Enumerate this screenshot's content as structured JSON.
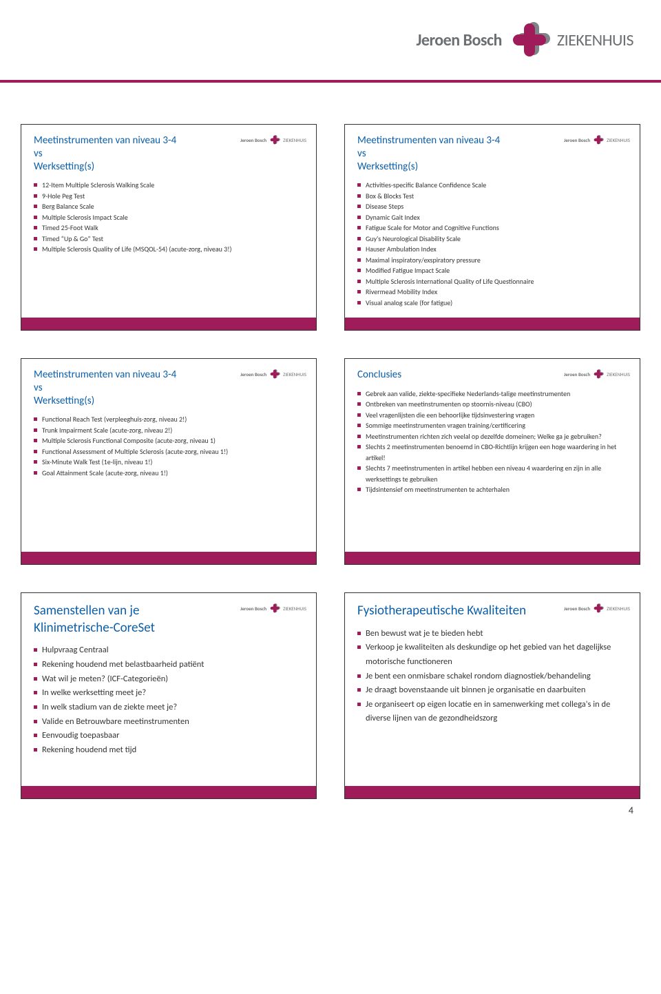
{
  "colors": {
    "accent": "#a01b59",
    "gray": "#6b6f72",
    "titleColor": "#0b5ea8"
  },
  "header": {
    "brand_bold": "Jeroen Bosch",
    "brand_light": "ZIEKENHUIS"
  },
  "pageNumber": "4",
  "slides": [
    {
      "title": "Meetinstrumenten van niveau 3-4\nvs\nWerksetting(s)",
      "titleSize": "normal",
      "itemSize": "normal",
      "items": [
        "12-Item Multiple Sclerosis Walking Scale",
        "9-Hole Peg Test",
        "Berg Balance Scale",
        "Multiple  Sclerosis Impact Scale",
        "Timed 25-Foot Walk",
        "Timed “Up & Go” Test",
        "Multiple Sclerosis Quality of Life (MSQOL-54) (acute-zorg, niveau 3!)"
      ]
    },
    {
      "title": "Meetinstrumenten van niveau 3-4\nvs\nWerksetting(s)",
      "titleSize": "normal",
      "itemSize": "normal",
      "items": [
        "Activities-specific Balance Confidence Scale",
        "Box & Blocks Test",
        "Disease Steps",
        "Dynamic Gait Index",
        "Fatigue Scale for Motor and Cognitive Functions",
        "Guy's Neurological Disability Scale",
        "Hauser Ambulation Index",
        "Maximal inspiratory/exspiratory pressure",
        "Modified Fatigue Impact Scale",
        "Multiple Sclerosis International Quality of Life Questionnaire",
        "Rivermead Mobility Index",
        "Visual analog scale (for fatigue)"
      ]
    },
    {
      "title": "Meetinstrumenten van niveau 3-4\nvs\nWerksetting(s)",
      "titleSize": "normal",
      "itemSize": "normal",
      "items": [
        "Functional Reach Test (verpleeghuis-zorg, niveau 2!)",
        "Trunk Impairment Scale (acute-zorg, niveau 2!)",
        "Multiple Sclerosis Functional Composite (acute-zorg, niveau 1)",
        "Functional Assessment of Multiple Sclerosis (acute-zorg, niveau 1!)",
        "Six-Minute Walk Test (1e-lijn, niveau 1!)",
        "Goal Attainment Scale (acute-zorg, niveau 1!)"
      ]
    },
    {
      "title": "Conclusies",
      "titleSize": "normal",
      "itemSize": "normal",
      "items": [
        "Gebrek aan valide, ziekte-specifieke Nederlands-talige meetinstrumenten",
        "Ontbreken van meetinstrumenten op stoornis-niveau (CBO)",
        "Veel vragenlijsten die een behoorlijke tijdsinvestering vragen",
        "Sommige meetinstrumenten vragen training/certificering",
        "Meetinstrumenten richten zich veelal op dezelfde domeinen; Welke ga je gebruiken?",
        "Slechts 2 meetinstrumenten benoemd in CBO-Richtlijn krijgen een hoge waardering in het artikel!",
        "Slechts 7 meetinstrumenten in artikel hebben een niveau 4 waardering en zijn in alle werksettings te gebruiken",
        "Tijdsintensief om meetinstrumenten te achterhalen"
      ]
    },
    {
      "title": "Samenstellen van je Klinimetrische-CoreSet",
      "titleSize": "big",
      "itemSize": "big",
      "items": [
        "Hulpvraag Centraal",
        "Rekening houdend met belastbaarheid patiënt",
        "Wat wil je meten? (ICF-Categorieën)",
        "In welke werksetting meet je?",
        "In welk stadium van de ziekte meet je?",
        "Valide en Betrouwbare meetinstrumenten",
        "Eenvoudig toepasbaar",
        "Rekening houdend met tijd"
      ]
    },
    {
      "title": "Fysiotherapeutische Kwaliteiten",
      "titleSize": "big",
      "itemSize": "big",
      "items": [
        "Ben bewust wat je te bieden hebt",
        "Verkoop je kwaliteiten als deskundige op het gebied van het dagelijkse motorische functioneren",
        "Je bent een onmisbare schakel rondom diagnostiek/behandeling",
        "Je draagt bovenstaande uit binnen je organisatie en daarbuiten",
        "Je organiseert op eigen locatie en in samenwerking met collega's in de diverse lijnen van de gezondheidszorg"
      ]
    }
  ]
}
